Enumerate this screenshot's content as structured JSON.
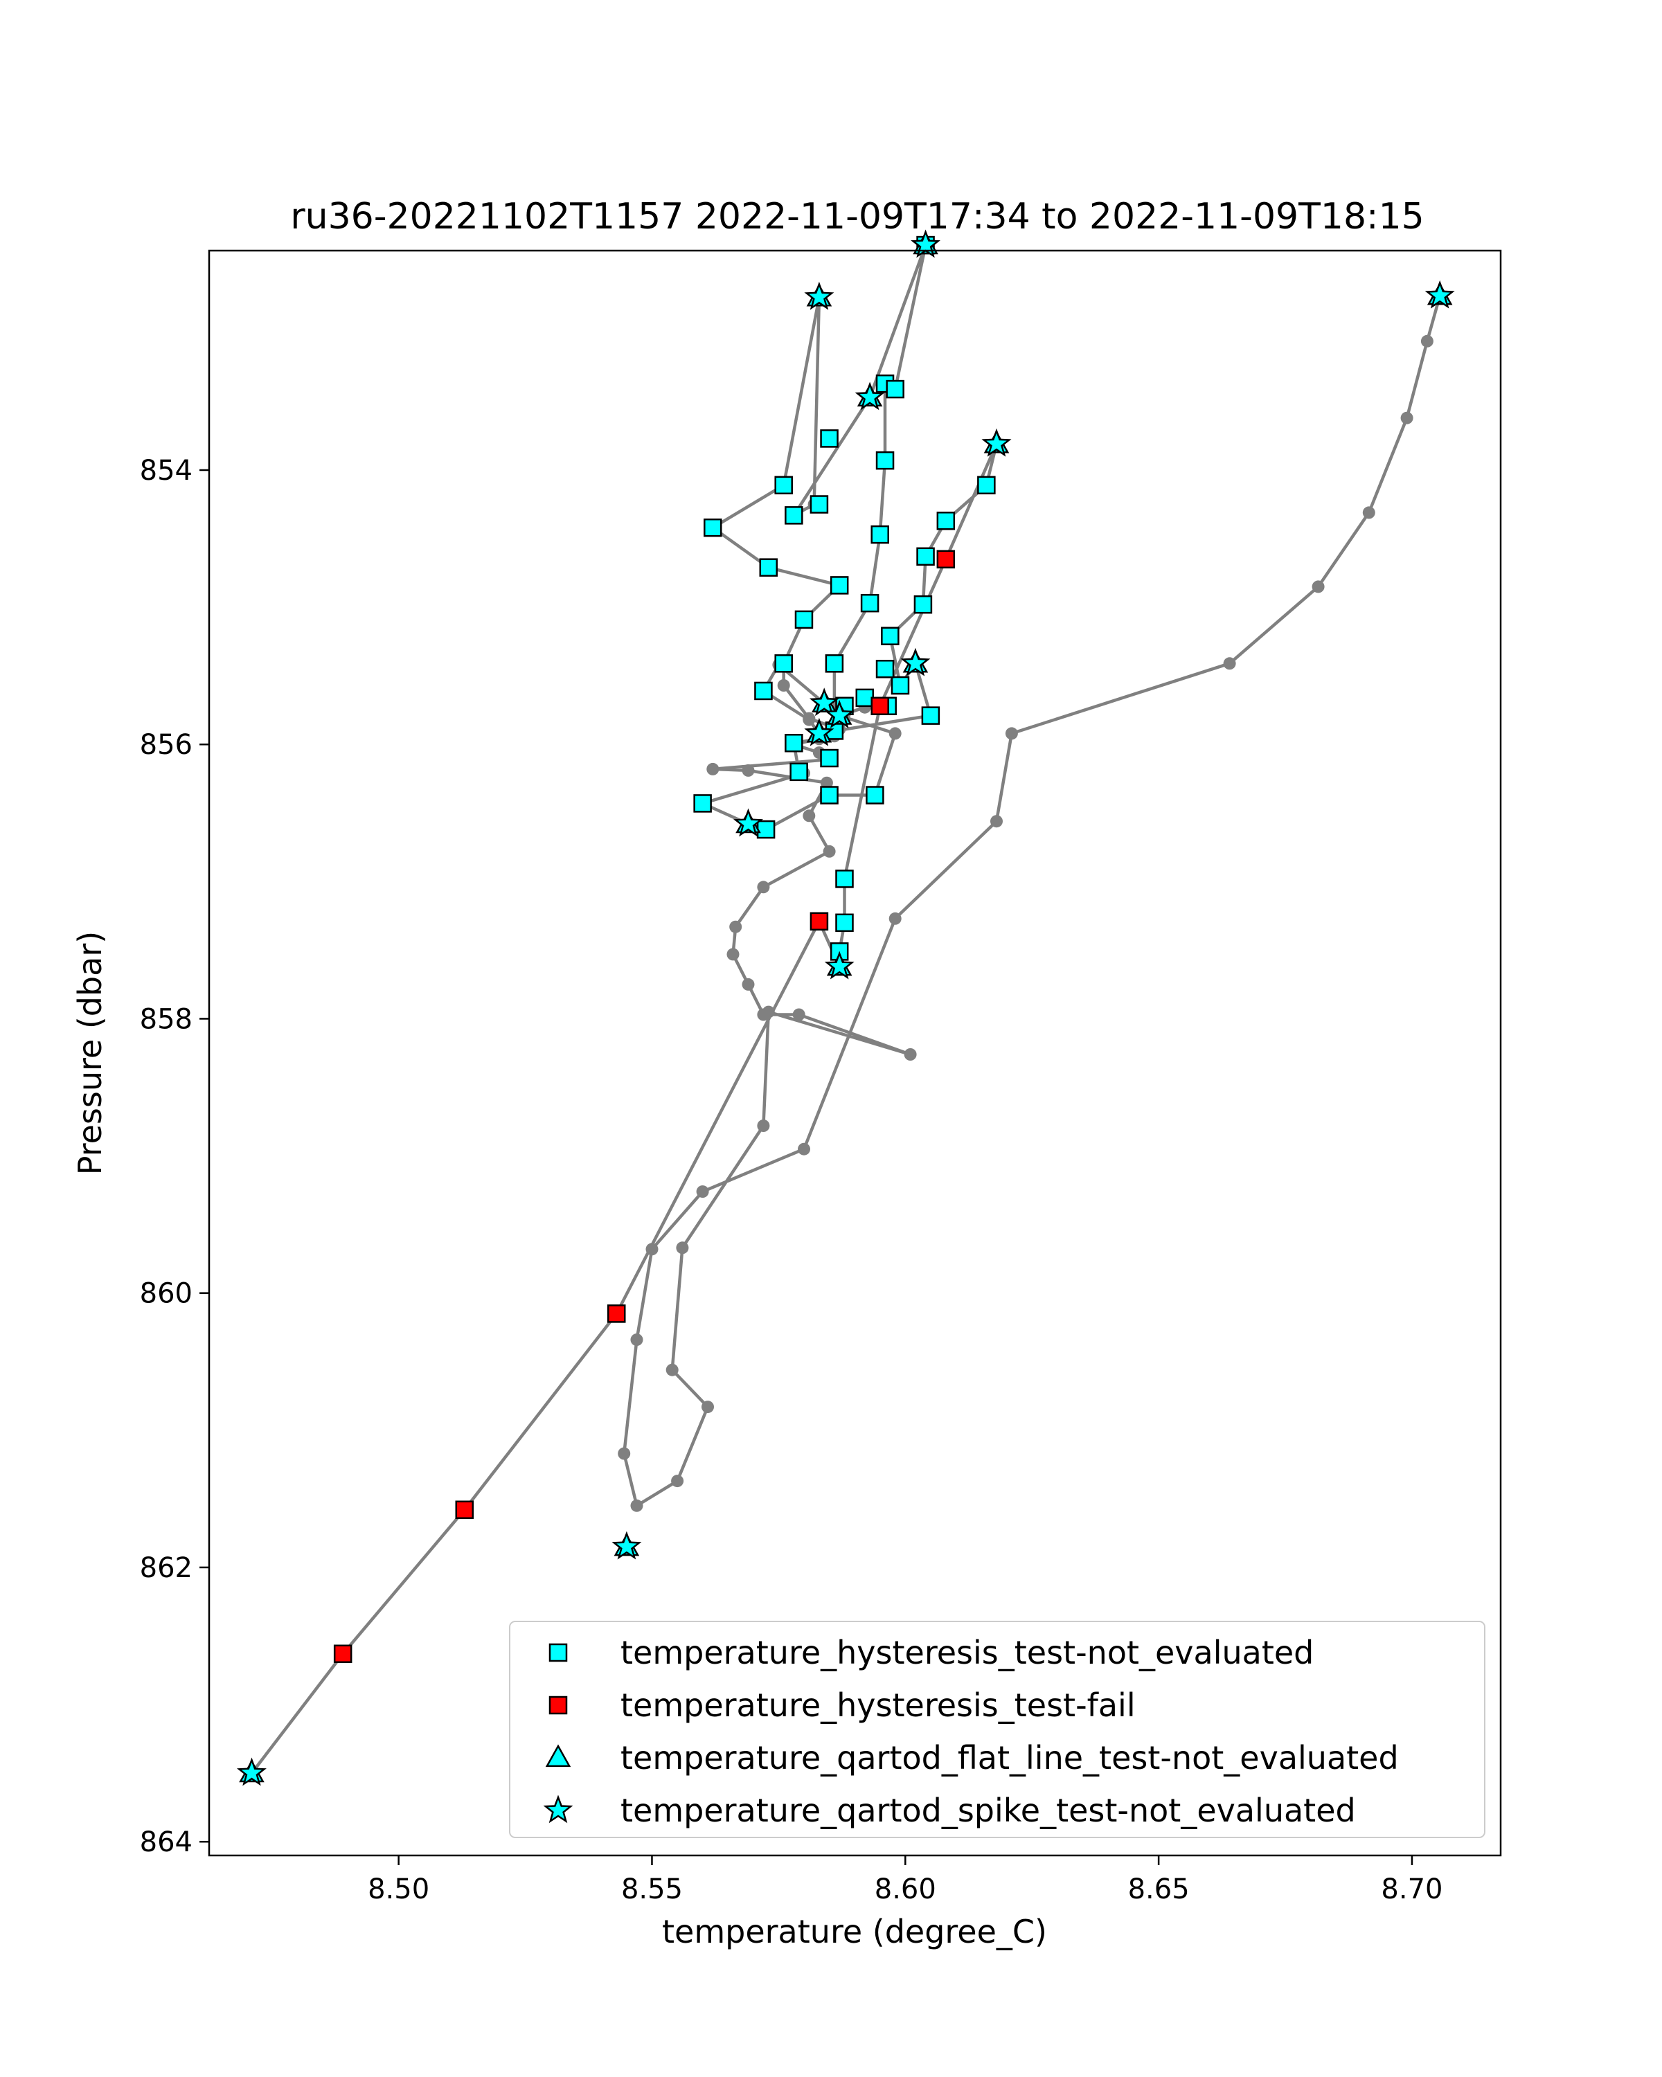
{
  "chart_data": {
    "type": "line",
    "title": "ru36-20221102T1157 2022-11-09T17:34 to 2022-11-09T18:15",
    "xlabel": "temperature (degree_C)",
    "ylabel": "Pressure (dbar)",
    "xlim": [
      8.4626,
      8.7175
    ],
    "ylim": [
      864.1,
      852.4
    ],
    "y_inverted": true,
    "xticks": [
      "8.50",
      "8.55",
      "8.60",
      "8.65",
      "8.70"
    ],
    "xtick_values": [
      8.5,
      8.55,
      8.6,
      8.65,
      8.7
    ],
    "yticks": [
      "854",
      "856",
      "858",
      "860",
      "862",
      "864"
    ],
    "ytick_values": [
      854,
      856,
      858,
      860,
      862,
      864
    ],
    "grid": false,
    "legend_position": "lower-right",
    "colors": {
      "line": "#808080",
      "not_evaluated": "#00ffff",
      "fail": "#ff0000",
      "marker_edge": "#000000"
    },
    "profile_line": [
      [
        8.7055,
        852.73
      ],
      [
        8.703,
        853.06
      ],
      [
        8.699,
        853.62
      ],
      [
        8.6915,
        854.31
      ],
      [
        8.6815,
        854.85
      ],
      [
        8.664,
        855.41
      ],
      [
        8.621,
        855.92
      ],
      [
        8.618,
        856.56
      ],
      [
        8.598,
        857.27
      ],
      [
        8.58,
        858.95
      ],
      [
        8.56,
        859.26
      ],
      [
        8.55,
        859.68
      ],
      [
        8.547,
        860.34
      ],
      [
        8.5445,
        861.17
      ],
      [
        8.547,
        861.55
      ],
      [
        8.555,
        861.37
      ],
      [
        8.561,
        860.83
      ],
      [
        8.554,
        860.56
      ],
      [
        8.556,
        859.67
      ],
      [
        8.572,
        858.78
      ],
      [
        8.573,
        857.95
      ],
      [
        8.601,
        858.26
      ],
      [
        8.579,
        857.97
      ],
      [
        8.572,
        857.97
      ],
      [
        8.569,
        857.75
      ],
      [
        8.566,
        857.53
      ],
      [
        8.5665,
        857.33
      ],
      [
        8.572,
        857.04
      ],
      [
        8.585,
        856.78
      ],
      [
        8.581,
        856.52
      ],
      [
        8.5845,
        856.28
      ],
      [
        8.569,
        856.19
      ],
      [
        8.562,
        856.18
      ],
      [
        8.585,
        856.11
      ],
      [
        8.583,
        856.06
      ],
      [
        8.578,
        856.0
      ],
      [
        8.583,
        855.96
      ],
      [
        8.587,
        855.89
      ],
      [
        8.581,
        855.81
      ],
      [
        8.576,
        855.57
      ],
      [
        8.576,
        855.41
      ],
      [
        8.58,
        855.09
      ],
      [
        8.587,
        854.84
      ],
      [
        8.573,
        854.71
      ],
      [
        8.562,
        854.42
      ],
      [
        8.576,
        854.11
      ],
      [
        8.583,
        852.74
      ],
      [
        8.582,
        854.25
      ],
      [
        8.578,
        854.33
      ],
      [
        8.593,
        853.47
      ],
      [
        8.604,
        852.36
      ],
      [
        8.598,
        853.41
      ],
      [
        8.596,
        853.37
      ],
      [
        8.596,
        853.93
      ],
      [
        8.595,
        854.47
      ],
      [
        8.593,
        854.97
      ],
      [
        8.586,
        855.41
      ],
      [
        8.586,
        855.94
      ],
      [
        8.578,
        855.99
      ],
      [
        8.579,
        856.2
      ],
      [
        8.58,
        856.21
      ],
      [
        8.56,
        856.43
      ],
      [
        8.569,
        856.58
      ],
      [
        8.5725,
        856.62
      ],
      [
        8.585,
        856.37
      ],
      [
        8.594,
        856.37
      ],
      [
        8.598,
        855.92
      ],
      [
        8.587,
        855.79
      ],
      [
        8.592,
        855.73
      ],
      [
        8.588,
        855.78
      ],
      [
        8.584,
        855.7
      ],
      [
        8.575,
        855.42
      ],
      [
        8.572,
        855.61
      ],
      [
        8.581,
        855.82
      ],
      [
        8.583,
        855.92
      ],
      [
        8.605,
        855.79
      ],
      [
        8.602,
        855.41
      ],
      [
        8.599,
        855.57
      ],
      [
        8.597,
        855.21
      ],
      [
        8.6035,
        854.98
      ],
      [
        8.604,
        854.63
      ],
      [
        8.608,
        854.37
      ],
      [
        8.616,
        854.11
      ],
      [
        8.618,
        853.81
      ],
      [
        8.608,
        854.65
      ],
      [
        8.595,
        855.72
      ],
      [
        8.588,
        856.98
      ],
      [
        8.588,
        857.3
      ],
      [
        8.587,
        857.51
      ],
      [
        8.587,
        857.62
      ],
      [
        8.583,
        857.29
      ],
      [
        8.543,
        860.15
      ],
      [
        8.513,
        861.58
      ],
      [
        8.489,
        862.63
      ],
      [
        8.471,
        863.5
      ]
    ],
    "series": [
      {
        "name": "temperature_hysteresis_test-not_evaluated",
        "marker": "square",
        "color": "#00ffff",
        "points": [
          [
            8.604,
            852.36
          ],
          [
            8.596,
            853.37
          ],
          [
            8.598,
            853.41
          ],
          [
            8.585,
            853.77
          ],
          [
            8.596,
            853.93
          ],
          [
            8.576,
            854.11
          ],
          [
            8.583,
            854.25
          ],
          [
            8.578,
            854.33
          ],
          [
            8.562,
            854.42
          ],
          [
            8.608,
            854.37
          ],
          [
            8.616,
            854.11
          ],
          [
            8.595,
            854.47
          ],
          [
            8.604,
            854.63
          ],
          [
            8.573,
            854.71
          ],
          [
            8.587,
            854.84
          ],
          [
            8.593,
            854.97
          ],
          [
            8.6035,
            854.98
          ],
          [
            8.58,
            855.09
          ],
          [
            8.597,
            855.21
          ],
          [
            8.576,
            855.41
          ],
          [
            8.586,
            855.41
          ],
          [
            8.599,
            855.57
          ],
          [
            8.572,
            855.61
          ],
          [
            8.596,
            855.45
          ],
          [
            8.592,
            855.66
          ],
          [
            8.588,
            855.72
          ],
          [
            8.605,
            855.79
          ],
          [
            8.586,
            855.9
          ],
          [
            8.578,
            855.99
          ],
          [
            8.579,
            856.2
          ],
          [
            8.585,
            856.37
          ],
          [
            8.594,
            856.37
          ],
          [
            8.56,
            856.43
          ],
          [
            8.5725,
            856.62
          ],
          [
            8.588,
            856.98
          ],
          [
            8.588,
            857.3
          ],
          [
            8.587,
            857.51
          ],
          [
            8.585,
            856.1
          ],
          [
            8.5965,
            855.72
          ]
        ]
      },
      {
        "name": "temperature_hysteresis_test-fail",
        "marker": "square",
        "color": "#ff0000",
        "points": [
          [
            8.608,
            854.65
          ],
          [
            8.595,
            855.72
          ],
          [
            8.583,
            857.29
          ],
          [
            8.543,
            860.15
          ],
          [
            8.513,
            861.58
          ],
          [
            8.489,
            862.63
          ]
        ]
      },
      {
        "name": "temperature_qartod_flat_line_test-not_evaluated",
        "marker": "triangle",
        "color": "#00ffff",
        "points": [
          [
            8.604,
            852.36
          ],
          [
            8.583,
            852.74
          ],
          [
            8.593,
            853.47
          ],
          [
            8.618,
            853.81
          ],
          [
            8.7055,
            852.73
          ],
          [
            8.602,
            855.41
          ],
          [
            8.584,
            855.7
          ],
          [
            8.587,
            855.79
          ],
          [
            8.583,
            855.92
          ],
          [
            8.569,
            856.58
          ],
          [
            8.587,
            857.62
          ],
          [
            8.545,
            861.85
          ],
          [
            8.471,
            863.5
          ]
        ]
      },
      {
        "name": "temperature_qartod_spike_test-not_evaluated",
        "marker": "star",
        "color": "#00ffff",
        "points": [
          [
            8.604,
            852.36
          ],
          [
            8.583,
            852.74
          ],
          [
            8.593,
            853.47
          ],
          [
            8.618,
            853.81
          ],
          [
            8.7055,
            852.73
          ],
          [
            8.602,
            855.41
          ],
          [
            8.584,
            855.7
          ],
          [
            8.587,
            855.79
          ],
          [
            8.583,
            855.92
          ],
          [
            8.569,
            856.58
          ],
          [
            8.587,
            857.62
          ],
          [
            8.545,
            861.85
          ],
          [
            8.471,
            863.5
          ]
        ]
      }
    ]
  }
}
